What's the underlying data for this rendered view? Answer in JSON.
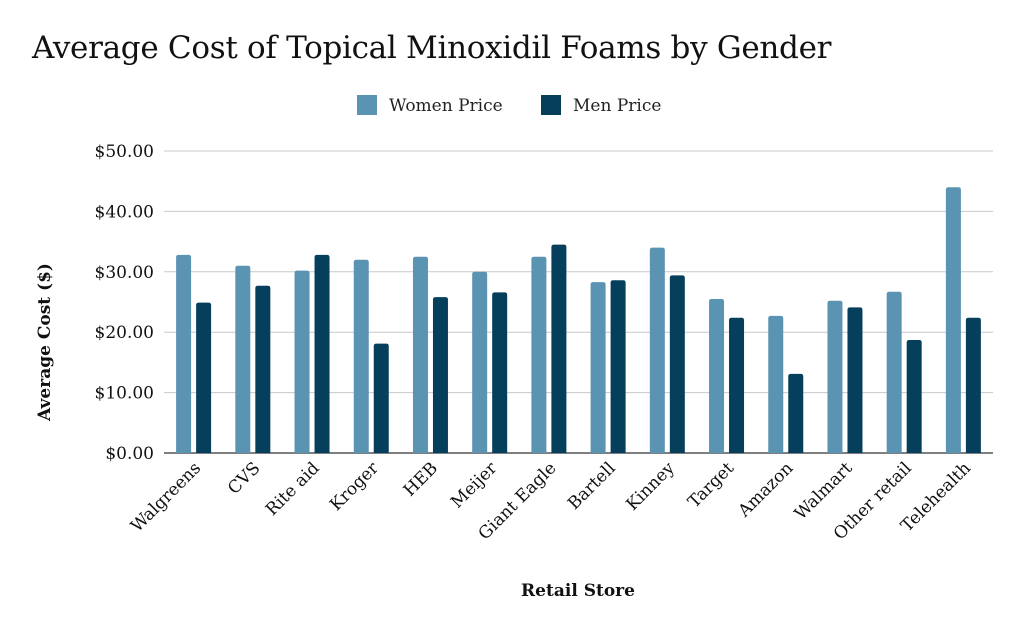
{
  "chart_data": {
    "type": "bar",
    "title": "Average Cost of Topical Minoxidil Foams by Gender",
    "xlabel": "Retail Store",
    "ylabel": "Average Cost ($)",
    "ylim": [
      0,
      50
    ],
    "yticks": [
      "$0.00",
      "$10.00",
      "$20.00",
      "$30.00",
      "$40.00",
      "$50.00"
    ],
    "grid": true,
    "legend_position": "top-center",
    "categories": [
      "Walgreens",
      "CVS",
      "Rite aid",
      "Kroger",
      "HEB",
      "Meijer",
      "Giant Eagle",
      "Bartell",
      "Kinney",
      "Target",
      "Amazon",
      "Walmart",
      "Other retail",
      "Telehealth"
    ],
    "series": [
      {
        "name": "Women Price",
        "color": "#5b93b3",
        "values": [
          32.8,
          31.0,
          30.2,
          32.0,
          32.5,
          30.0,
          32.5,
          28.3,
          34.0,
          25.5,
          22.7,
          25.2,
          26.7,
          44.0
        ]
      },
      {
        "name": "Men Price",
        "color": "#063f5c",
        "values": [
          24.9,
          27.7,
          32.8,
          18.1,
          25.8,
          26.6,
          34.5,
          28.6,
          29.4,
          22.4,
          13.1,
          24.1,
          18.7,
          22.4
        ]
      }
    ]
  }
}
